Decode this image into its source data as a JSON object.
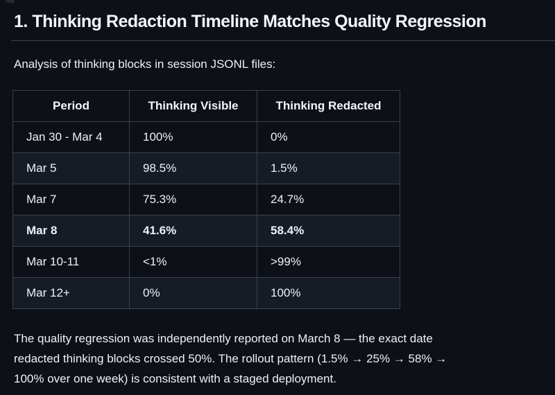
{
  "colors": {
    "page_background": "#0d1117",
    "row_alternate_background": "#161c26",
    "border": "#3a414b",
    "text": "#edf2f8"
  },
  "heading": {
    "text": "1. Thinking Redaction Timeline Matches Quality Regression"
  },
  "intro": {
    "text": "Analysis of thinking blocks in session JSONL files:"
  },
  "table": {
    "columns": [
      "Period",
      "Thinking Visible",
      "Thinking Redacted"
    ],
    "rows": [
      {
        "period": "Jan 30 - Mar 4",
        "visible": "100%",
        "redacted": "0%",
        "bold": false
      },
      {
        "period": "Mar 5",
        "visible": "98.5%",
        "redacted": "1.5%",
        "bold": false
      },
      {
        "period": "Mar 7",
        "visible": "75.3%",
        "redacted": "24.7%",
        "bold": false
      },
      {
        "period": "Mar 8",
        "visible": "41.6%",
        "redacted": "58.4%",
        "bold": true
      },
      {
        "period": "Mar 10-11",
        "visible": "<1%",
        "redacted": ">99%",
        "bold": false
      },
      {
        "period": "Mar 12+",
        "visible": "0%",
        "redacted": "100%",
        "bold": false
      }
    ]
  },
  "footer": {
    "lines": [
      "The quality regression was independently reported on March 8 — the exact date",
      "redacted thinking blocks crossed 50%. The rollout pattern (1.5% → 25% → 58% →",
      "100% over one week) is consistent with a staged deployment."
    ]
  }
}
